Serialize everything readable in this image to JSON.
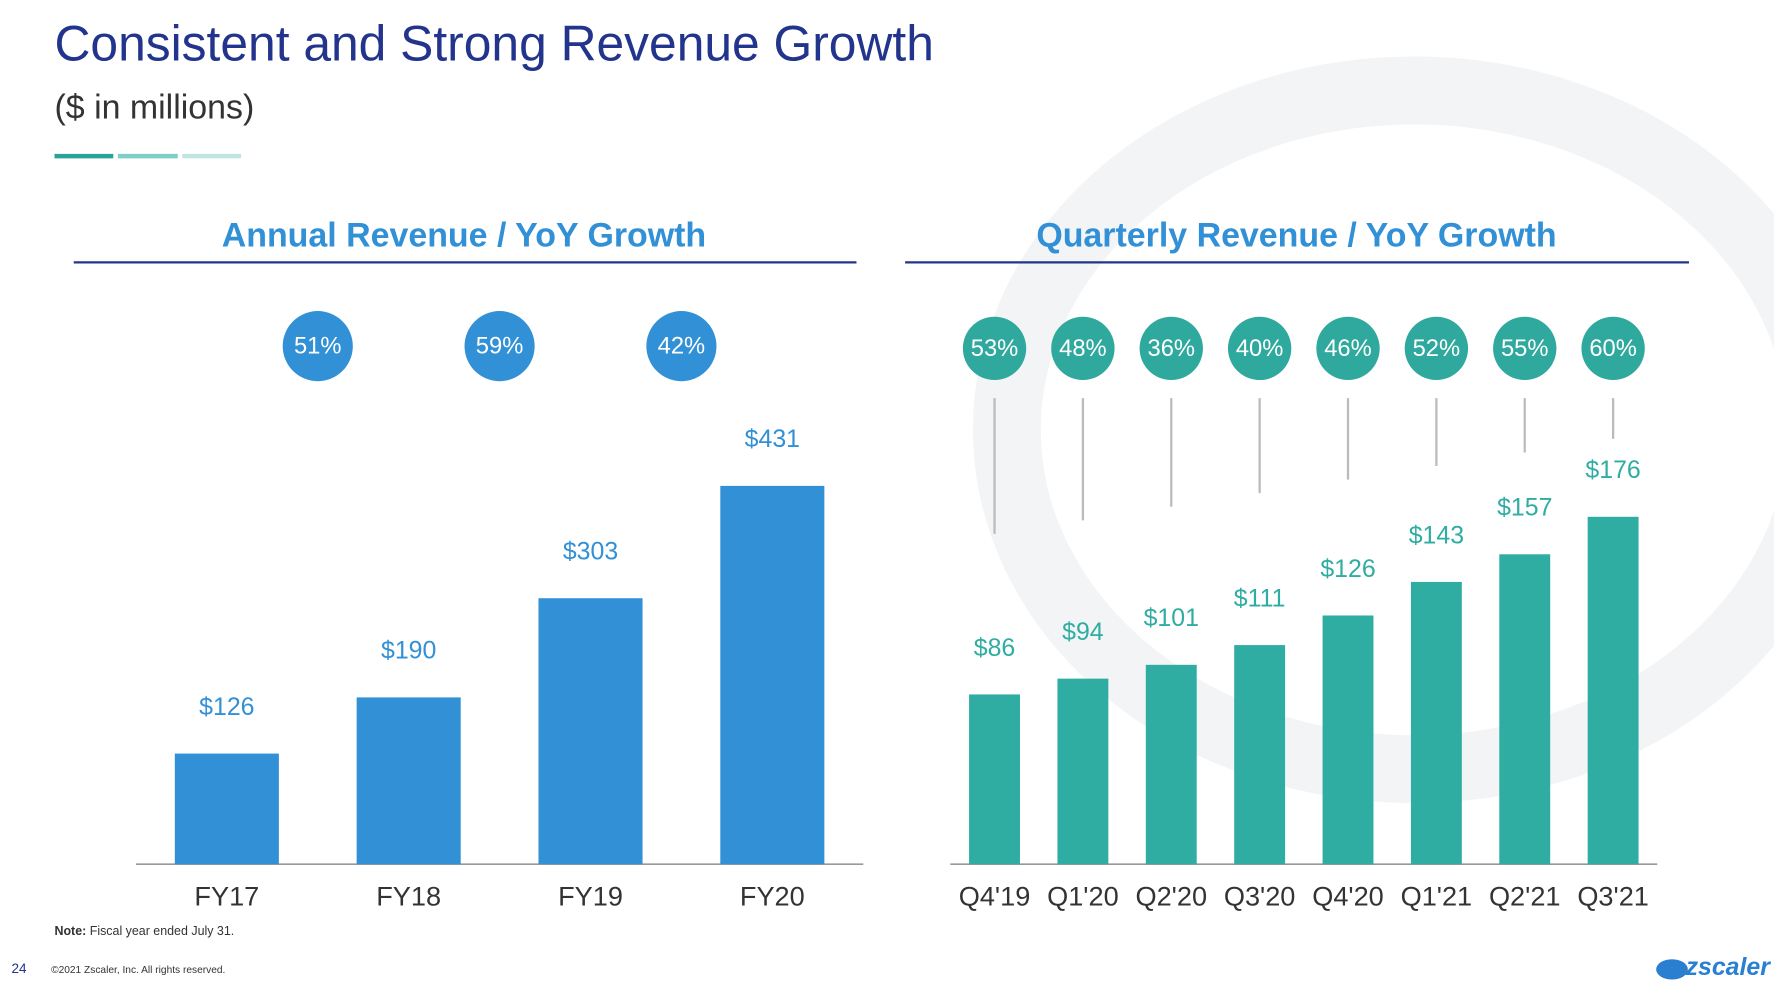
{
  "title": "Consistent and Strong Revenue Growth",
  "subtitle": "($ in millions)",
  "note_label": "Note:",
  "note": "Fiscal year ended July 31.",
  "page_number": "24",
  "copyright": "©2021 Zscaler, Inc. All rights reserved.",
  "logo": "zscaler",
  "chart_data": [
    {
      "type": "bar",
      "title": "Annual Revenue / YoY Growth",
      "categories": [
        "FY17",
        "FY18",
        "FY19",
        "FY20"
      ],
      "values": [
        126,
        190,
        303,
        431
      ],
      "value_labels": [
        "$126",
        "$190",
        "$303",
        "$431"
      ],
      "growth": [
        51,
        59,
        42
      ],
      "growth_labels": [
        "51%",
        "59%",
        "42%"
      ],
      "color": "#3190d6",
      "ylim": [
        0,
        500
      ]
    },
    {
      "type": "bar",
      "title": "Quarterly Revenue / YoY Growth",
      "categories": [
        "Q4'19",
        "Q1'20",
        "Q2'20",
        "Q3'20",
        "Q4'20",
        "Q1'21",
        "Q2'21",
        "Q3'21"
      ],
      "values": [
        86,
        94,
        101,
        111,
        126,
        143,
        157,
        176
      ],
      "value_labels": [
        "$86",
        "$94",
        "$101",
        "$111",
        "$126",
        "$143",
        "$157",
        "$176"
      ],
      "growth": [
        53,
        48,
        36,
        40,
        46,
        52,
        55,
        60
      ],
      "growth_labels": [
        "53%",
        "48%",
        "36%",
        "40%",
        "46%",
        "52%",
        "55%",
        "60%"
      ],
      "color": "#2fada2",
      "ylim": [
        0,
        200
      ]
    }
  ]
}
